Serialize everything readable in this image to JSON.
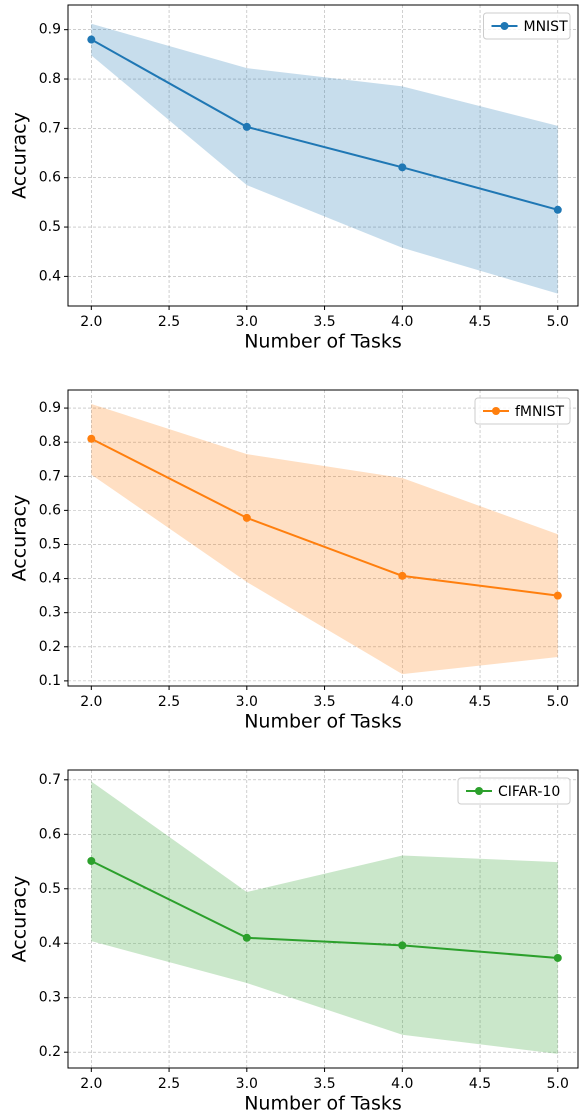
{
  "chart_data": [
    {
      "type": "line",
      "x": [
        2,
        3,
        4,
        5
      ],
      "xlabel": "Number of Tasks",
      "ylabel": "Accuracy",
      "series": [
        {
          "name": "MNIST",
          "color": "#1f77b4",
          "values": [
            0.88,
            0.703,
            0.621,
            0.535
          ],
          "upper": [
            0.912,
            0.822,
            0.785,
            0.705
          ],
          "lower": [
            0.848,
            0.585,
            0.458,
            0.365
          ]
        }
      ],
      "xlim": [
        1.85,
        5.13
      ],
      "xticks": [
        {
          "value": 2,
          "label": "2.0"
        },
        2.5,
        3.5,
        4.5,
        {
          "value": 3,
          "label": "3.0"
        },
        {
          "value": 4,
          "label": "4.0"
        },
        {
          "value": 5,
          "label": "5.0"
        }
      ],
      "ylim": [
        0.34,
        0.95
      ],
      "yticks": [
        0.4,
        0.5,
        0.6,
        0.7,
        0.8,
        0.9
      ],
      "grid": true,
      "legend": "upper right"
    },
    {
      "type": "line",
      "x": [
        2,
        3,
        4,
        5
      ],
      "xlabel": "Number of Tasks",
      "ylabel": "Accuracy",
      "series": [
        {
          "name": "fMNIST",
          "color": "#ff7f0e",
          "values": [
            0.81,
            0.578,
            0.408,
            0.35
          ],
          "upper": [
            0.912,
            0.765,
            0.695,
            0.53
          ],
          "lower": [
            0.705,
            0.39,
            0.12,
            0.17
          ]
        }
      ],
      "xlim": [
        1.85,
        5.13
      ],
      "xticks": [
        {
          "value": 2,
          "label": "2.0"
        },
        2.5,
        3.5,
        4.5,
        {
          "value": 3,
          "label": "3.0"
        },
        {
          "value": 4,
          "label": "4.0"
        },
        {
          "value": 5,
          "label": "5.0"
        }
      ],
      "ylim": [
        0.085,
        0.953
      ],
      "yticks": [
        0.1,
        0.2,
        0.3,
        0.4,
        0.5,
        0.6,
        0.7,
        0.8,
        0.9
      ],
      "grid": true,
      "legend": "upper right"
    },
    {
      "type": "line",
      "x": [
        2,
        3,
        4,
        5
      ],
      "xlabel": "Number of Tasks",
      "ylabel": "Accuracy",
      "series": [
        {
          "name": "CIFAR-10",
          "color": "#2ca02c",
          "values": [
            0.551,
            0.41,
            0.396,
            0.373
          ],
          "upper": [
            0.697,
            0.494,
            0.561,
            0.549
          ],
          "lower": [
            0.404,
            0.327,
            0.232,
            0.197
          ]
        }
      ],
      "xlim": [
        1.85,
        5.13
      ],
      "xticks": [
        {
          "value": 2,
          "label": "2.0"
        },
        2.5,
        3.5,
        4.5,
        {
          "value": 3,
          "label": "3.0"
        },
        {
          "value": 4,
          "label": "4.0"
        },
        {
          "value": 5,
          "label": "5.0"
        }
      ],
      "ylim": [
        0.171,
        0.718
      ],
      "yticks": [
        0.2,
        0.3,
        0.4,
        0.5,
        0.6,
        0.7
      ],
      "grid": true,
      "legend": "upper right"
    }
  ]
}
